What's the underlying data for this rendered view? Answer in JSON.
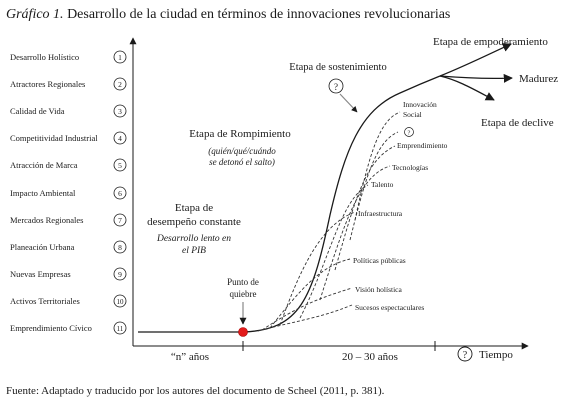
{
  "title": {
    "lead": "Gráfico 1.",
    "text": "Desarrollo de la ciudad en términos de innovaciones revolucionarias"
  },
  "factors": [
    {
      "label": "Desarrollo Holístico",
      "num": "1"
    },
    {
      "label": "Atractores Regionales",
      "num": "2"
    },
    {
      "label": "Calidad de Vida",
      "num": "3"
    },
    {
      "label": "Competitividad Industrial",
      "num": "4"
    },
    {
      "label": "Atracción de Marca",
      "num": "5"
    },
    {
      "label": "Impacto Ambiental",
      "num": "6"
    },
    {
      "label": "Mercados Regionales",
      "num": "7"
    },
    {
      "label": "Planeación Urbana",
      "num": "8"
    },
    {
      "label": "Nuevas Empresas",
      "num": "9"
    },
    {
      "label": "Activos Territoriales",
      "num": "10"
    },
    {
      "label": "Emprendimiento Cívico",
      "num": "11"
    }
  ],
  "stages": {
    "constant": "Etapa de",
    "constant2": "desempeño constante",
    "constant_sub1": "Desarrollo lento en",
    "constant_sub2": "el PIB",
    "breakthrough": "Etapa de Rompimiento",
    "breakthrough_sub1": "(quién/qué/cuándo",
    "breakthrough_sub2": "se detonó el salto)",
    "sustain": "Etapa de sostenimiento",
    "empower": "Etapa de empoderamiento",
    "maturity": "Madurez",
    "decline": "Etapa de declive"
  },
  "turning_point": {
    "line1": "Punto de",
    "line2": "quiebre"
  },
  "question_mark": "?",
  "innovations": [
    {
      "label": "Innovación"
    },
    {
      "label": "Social"
    },
    {
      "label": "?"
    },
    {
      "label": "Emprendimiento"
    },
    {
      "label": "Tecnologías"
    },
    {
      "label": "Talento"
    },
    {
      "label": "Infraestructura"
    },
    {
      "label": "Políticas públicas"
    },
    {
      "label": "Visión holística"
    },
    {
      "label": "Sucesos espectaculares"
    }
  ],
  "axis": {
    "x_left": "“n” años",
    "x_mid": "20 – 30 años",
    "x_q": "?",
    "x_right": "Tiempo"
  },
  "source": "Fuente: Adaptado y traducido por los autores del documento de Scheel (2011, p. 381)."
}
